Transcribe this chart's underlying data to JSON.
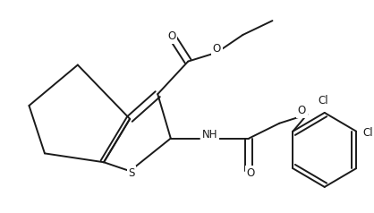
{
  "background": "#ffffff",
  "line_color": "#1a1a1a",
  "line_width": 1.4,
  "font_size": 8.5,
  "figsize": [
    4.18,
    2.38
  ],
  "dpi": 100,
  "xlim": [
    0,
    418
  ],
  "ylim": [
    0,
    238
  ]
}
